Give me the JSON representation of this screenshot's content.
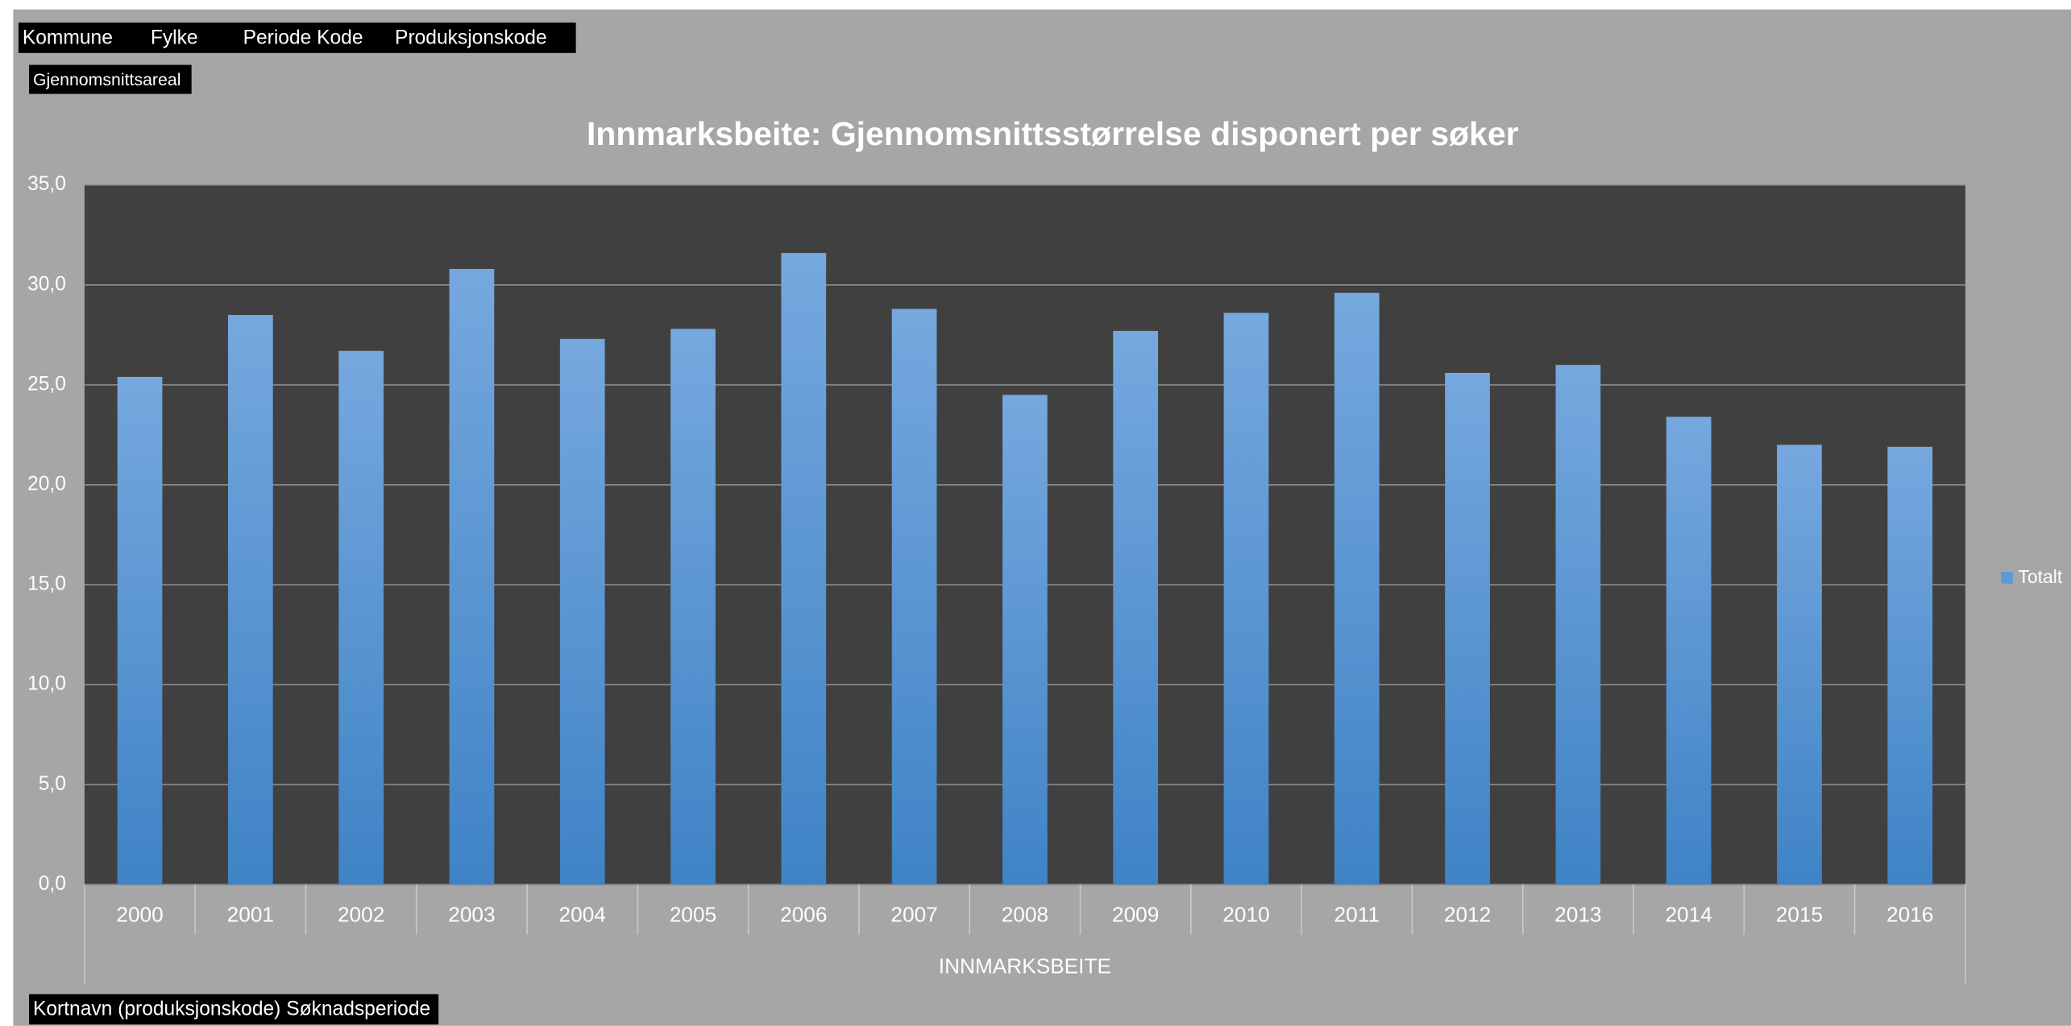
{
  "filters": {
    "fields": [
      "Kommune",
      "Fylke",
      "Periode Kode",
      "Produksjonskode"
    ],
    "value_field": "Gjennomsnittsareal",
    "row_field": "Kortnavn (produksjonskode) Søknadsperiode"
  },
  "chart_data": {
    "type": "bar",
    "title": "Innmarksbeite: Gjennomsnittsstørrelse disponert per søker",
    "x_label": "INNMARKSBEITE",
    "categories": [
      "2000",
      "2001",
      "2002",
      "2003",
      "2004",
      "2005",
      "2006",
      "2007",
      "2008",
      "2009",
      "2010",
      "2011",
      "2012",
      "2013",
      "2014",
      "2015",
      "2016"
    ],
    "series": [
      {
        "name": "Totalt",
        "color": "#5b9bd5",
        "values": [
          25.4,
          28.5,
          26.7,
          30.8,
          27.3,
          27.8,
          31.6,
          28.8,
          24.5,
          27.7,
          28.6,
          29.6,
          25.6,
          26.0,
          23.4,
          22.0,
          21.9
        ]
      }
    ],
    "ylim": [
      0,
      35
    ],
    "yticks": [
      {
        "value": 0,
        "label": "0,0"
      },
      {
        "value": 5,
        "label": "5,0"
      },
      {
        "value": 10,
        "label": "10,0"
      },
      {
        "value": 15,
        "label": "15,0"
      },
      {
        "value": 20,
        "label": "20,0"
      },
      {
        "value": 25,
        "label": "25,0"
      },
      {
        "value": 30,
        "label": "30,0"
      },
      {
        "value": 35,
        "label": "35,0"
      }
    ],
    "grid": true,
    "legend": "right"
  }
}
